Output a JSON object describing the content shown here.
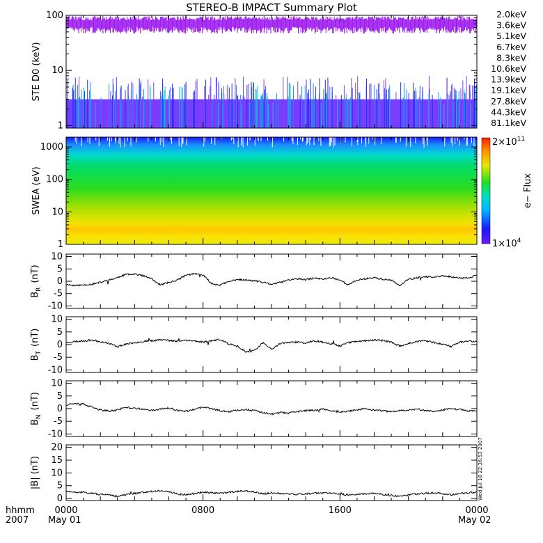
{
  "title": "STEREO-B IMPACT Summary Plot",
  "colors": {
    "energy_channels": [
      "#a020f0",
      "#7a3cff",
      "#1e2cff",
      "#1a8cff",
      "#00c8d8",
      "#00d45a",
      "#22d400",
      "#c8d400",
      "#ffc400",
      "#ff7a00",
      "#ff2000"
    ],
    "trace": "#000000",
    "frame": "#000000"
  },
  "footer": {
    "left_line1": "hhmm",
    "left_line2": "2007",
    "date_start": "May 01",
    "date_end": "May 02",
    "timestamp": "Wed Jul 18 22:36:53 2007"
  },
  "chart_data": [
    {
      "type": "line",
      "name": "ste",
      "ylabel": "STE D0 (keV)",
      "yscale": "log",
      "ylim": [
        0.9,
        100
      ],
      "yticks": [
        "1",
        "10",
        "100"
      ],
      "legend_position": "right",
      "series": [
        {
          "name": "2.0keV",
          "level": 75
        },
        {
          "name": "3.6keV",
          "level": 3
        },
        {
          "name": "5.1keV",
          "level": 2.8
        },
        {
          "name": "6.7keV",
          "level": 2.4
        },
        {
          "name": "8.3keV",
          "level": 2.1
        },
        {
          "name": "10.6keV",
          "level": 1.9
        },
        {
          "name": "13.9keV",
          "level": 1.8
        },
        {
          "name": "19.1keV",
          "level": 1.7
        },
        {
          "name": "27.8keV",
          "level": 1.6
        },
        {
          "name": "44.3keV",
          "level": 1.5
        },
        {
          "name": "81.1keV",
          "level": 1.4
        }
      ]
    },
    {
      "type": "heatmap",
      "name": "swea",
      "ylabel": "SWEA (eV)",
      "yscale": "log",
      "ylim": [
        1,
        2000
      ],
      "yticks": [
        "1",
        "10",
        "100",
        "1000"
      ],
      "colorbar": {
        "label": "e− Flux",
        "max": "2×10",
        "max_exp": "11",
        "min": "1×10",
        "min_exp": "4"
      }
    },
    {
      "type": "line",
      "name": "br",
      "ylabel": "B",
      "ylabel_sub": "R",
      "ylabel_unit": "(nT)",
      "ylim": [
        -11,
        11
      ],
      "yticks": [
        "10",
        "5",
        "0",
        "-5",
        "-10"
      ],
      "x": [
        0,
        30,
        60,
        90,
        120,
        150,
        180,
        210,
        240,
        270,
        300,
        330,
        360,
        390,
        420,
        450,
        480,
        510,
        540,
        570,
        600,
        630,
        660,
        690,
        720,
        750,
        780,
        810,
        840,
        870,
        900,
        930,
        960,
        990,
        1020,
        1050,
        1080,
        1110,
        1140,
        1170,
        1200,
        1230,
        1260,
        1290,
        1320,
        1350,
        1380,
        1410,
        1440
      ],
      "y": [
        -1.2,
        -1.8,
        -1.5,
        -1.2,
        -0.5,
        0.5,
        1.5,
        2.8,
        3.0,
        2.2,
        1.0,
        -1.5,
        -0.5,
        0.5,
        2.5,
        3.0,
        2.5,
        -1.0,
        -1.5,
        -0.2,
        0.8,
        0.4,
        0.2,
        -0.5,
        -1.2,
        -0.5,
        0.5,
        1.0,
        0.6,
        1.3,
        0.8,
        1.5,
        0.5,
        -1.5,
        0.5,
        1.0,
        1.5,
        0.8,
        0.4,
        -1.8,
        0.8,
        1.4,
        1.8,
        1.6,
        2.2,
        1.8,
        1.2,
        1.4,
        2.5
      ]
    },
    {
      "type": "line",
      "name": "bt",
      "ylabel": "B",
      "ylabel_sub": "T",
      "ylabel_unit": "(nT)",
      "ylim": [
        -11,
        11
      ],
      "yticks": [
        "10",
        "5",
        "0",
        "-5",
        "-10"
      ],
      "x": [
        0,
        30,
        60,
        90,
        120,
        150,
        180,
        210,
        240,
        270,
        300,
        330,
        360,
        390,
        420,
        450,
        480,
        510,
        540,
        570,
        600,
        630,
        660,
        690,
        720,
        750,
        780,
        810,
        840,
        870,
        900,
        930,
        960,
        990,
        1020,
        1050,
        1080,
        1110,
        1140,
        1170,
        1200,
        1230,
        1260,
        1290,
        1320,
        1350,
        1380,
        1410,
        1440
      ],
      "y": [
        0.8,
        1.2,
        1.5,
        1.8,
        1.2,
        0.5,
        -0.8,
        0.2,
        0.8,
        1.2,
        1.5,
        2.0,
        1.6,
        1.3,
        1.8,
        1.4,
        1.0,
        1.5,
        2.0,
        0.2,
        -0.5,
        -2.8,
        -2.5,
        0.8,
        -2.0,
        0.5,
        0.8,
        1.0,
        0.6,
        1.5,
        1.0,
        0.4,
        -0.5,
        0.8,
        1.3,
        1.5,
        1.8,
        1.6,
        1.0,
        -0.6,
        0.5,
        1.2,
        1.5,
        0.8,
        0.2,
        -0.8,
        1.0,
        1.4,
        1.2
      ]
    },
    {
      "type": "line",
      "name": "bn",
      "ylabel": "B",
      "ylabel_sub": "N",
      "ylabel_unit": "(nT)",
      "ylim": [
        -11,
        11
      ],
      "yticks": [
        "10",
        "5",
        "0",
        "-5",
        "-10"
      ],
      "x": [
        0,
        30,
        60,
        90,
        120,
        150,
        180,
        210,
        240,
        270,
        300,
        330,
        360,
        390,
        420,
        450,
        480,
        510,
        540,
        570,
        600,
        630,
        660,
        690,
        720,
        750,
        780,
        810,
        840,
        870,
        900,
        930,
        960,
        990,
        1020,
        1050,
        1080,
        1110,
        1140,
        1170,
        1200,
        1230,
        1260,
        1290,
        1320,
        1350,
        1380,
        1410,
        1440
      ],
      "y": [
        1.5,
        2.2,
        1.8,
        0.5,
        -0.5,
        -1.0,
        -0.5,
        0.5,
        0.2,
        -0.3,
        -0.6,
        -0.2,
        0.3,
        -0.8,
        -1.0,
        -0.4,
        0.6,
        0.0,
        -0.8,
        -1.2,
        -0.6,
        -0.3,
        -0.8,
        -1.5,
        -2.2,
        -1.6,
        -1.8,
        -1.2,
        -0.8,
        -0.6,
        -0.2,
        -0.8,
        -1.4,
        -1.0,
        -0.4,
        -0.1,
        -0.6,
        -0.9,
        -1.3,
        -0.8,
        -0.5,
        -0.2,
        -0.7,
        -1.0,
        -0.5,
        0.0,
        -0.3,
        -0.9,
        -0.7
      ]
    },
    {
      "type": "line",
      "name": "bmag",
      "ylabel": "|B| (nT)",
      "ylim": [
        -0.8,
        21
      ],
      "yticks": [
        "20",
        "15",
        "10",
        "5",
        "0"
      ],
      "x": [
        0,
        30,
        60,
        90,
        120,
        150,
        180,
        210,
        240,
        270,
        300,
        330,
        360,
        390,
        420,
        450,
        480,
        510,
        540,
        570,
        600,
        630,
        660,
        690,
        720,
        750,
        780,
        810,
        840,
        870,
        900,
        930,
        960,
        990,
        1020,
        1050,
        1080,
        1110,
        1140,
        1170,
        1200,
        1230,
        1260,
        1290,
        1320,
        1350,
        1380,
        1410,
        1440
      ],
      "y": [
        2.8,
        2.3,
        2.5,
        2.0,
        1.6,
        1.3,
        0.8,
        1.5,
        2.0,
        2.5,
        2.8,
        3.0,
        2.7,
        1.8,
        1.5,
        2.0,
        2.5,
        2.2,
        2.0,
        2.4,
        2.8,
        3.0,
        2.5,
        1.8,
        2.2,
        2.0,
        1.8,
        1.6,
        1.8,
        2.0,
        2.2,
        2.0,
        1.8,
        1.4,
        1.6,
        1.8,
        2.0,
        1.6,
        1.2,
        0.8,
        1.4,
        1.8,
        2.0,
        2.2,
        1.8,
        1.5,
        2.0,
        2.2,
        2.6
      ]
    }
  ],
  "xaxis": {
    "min": 0,
    "max": 1440,
    "ticks": [
      {
        "value": 0,
        "label": "0000"
      },
      {
        "value": 480,
        "label": "0800"
      },
      {
        "value": 960,
        "label": "1600"
      },
      {
        "value": 1440,
        "label": "0000"
      }
    ]
  }
}
